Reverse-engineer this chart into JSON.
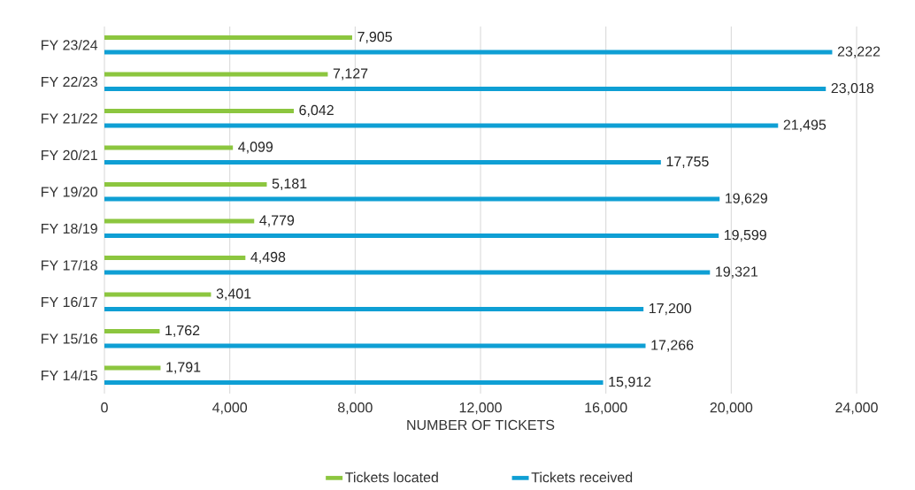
{
  "chart_data": {
    "type": "bar",
    "orientation": "horizontal",
    "xlabel": "NUMBER OF TICKETS",
    "categories": [
      "FY 23/24",
      "FY 22/23",
      "FY 21/22",
      "FY 20/21",
      "FY 19/20",
      "FY 18/19",
      "FY 17/18",
      "FY 16/17",
      "FY 15/16",
      "FY 14/15"
    ],
    "series": [
      {
        "name": "Tickets located",
        "color": "#8cc63f",
        "values": [
          7905,
          7127,
          6042,
          4099,
          5181,
          4779,
          4498,
          3401,
          1762,
          1791
        ],
        "value_labels": [
          "7,905",
          "7,127",
          "6,042",
          "4,099",
          "5,181",
          "4,779",
          "4,498",
          "3,401",
          "1,762",
          "1,791"
        ]
      },
      {
        "name": "Tickets received",
        "color": "#0f9fd4",
        "values": [
          23222,
          23018,
          21495,
          17755,
          19629,
          19599,
          19321,
          17200,
          17266,
          15912
        ],
        "value_labels": [
          "23,222",
          "23,018",
          "21,495",
          "17,755",
          "19,629",
          "19,599",
          "19,321",
          "17,200",
          "17,266",
          "15,912"
        ]
      }
    ],
    "xlim": [
      0,
      24000
    ],
    "xticks": [
      0,
      {
        "value": 4000,
        "label": "4,000"
      },
      {
        "value": 8000,
        "label": "8,000"
      },
      {
        "value": 12000,
        "label": "12,000"
      },
      {
        "value": 16000,
        "label": "16,000"
      },
      {
        "value": 20000,
        "label": "20,000"
      },
      {
        "value": 24000,
        "label": "24,000"
      }
    ],
    "grid": "x",
    "legend": "bottom"
  }
}
